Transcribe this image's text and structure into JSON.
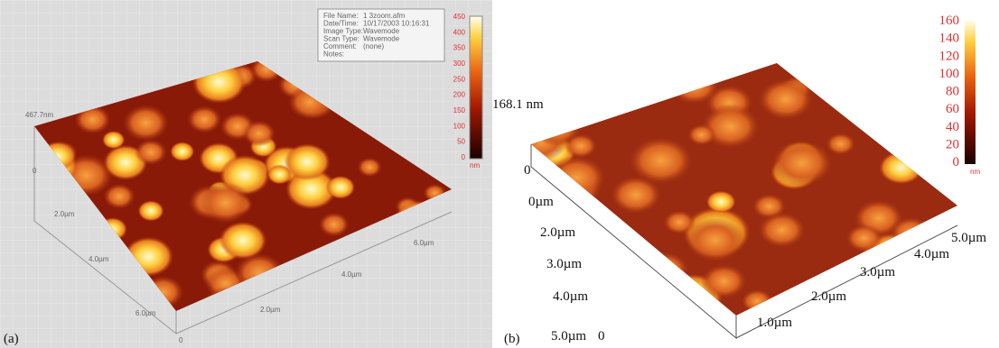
{
  "panel_a": {
    "label": "(a)",
    "info": [
      "File Name:",
      "1 3zoom.afm",
      "Date/Time:",
      "10/17/2003 10:16:31",
      "Image Type:",
      "Wavemode",
      "Scan Type:",
      "Wavemode",
      "Comment:",
      "(none)",
      "Notes:"
    ],
    "colorbar_ticks": [
      450,
      400,
      350,
      300,
      250,
      200,
      150,
      100,
      50,
      0
    ],
    "colorbar_unit": "nm",
    "z_max": "467.7nm",
    "z_min": "0",
    "left_axis": [
      "2.0µm",
      "4.0µm",
      "6.0µm"
    ],
    "right_axis": [
      "2.0µm",
      "4.0µm",
      "6.0µm"
    ],
    "origin": "0"
  },
  "panel_b": {
    "label": "(b)",
    "colorbar_ticks": [
      160,
      140,
      120,
      100,
      80,
      60,
      40,
      20,
      0
    ],
    "colorbar_unit": "nm",
    "z_max": "168.1 nm",
    "z_min": "0",
    "left_axis": [
      "0µm",
      "2.0µm",
      "3.0µm",
      "4.0µm",
      "5.0µm"
    ],
    "right_axis": [
      "1.0µm",
      "2.0µm",
      "3.0µm",
      "4.0µm",
      "5.0µm"
    ],
    "origin": "0"
  }
}
